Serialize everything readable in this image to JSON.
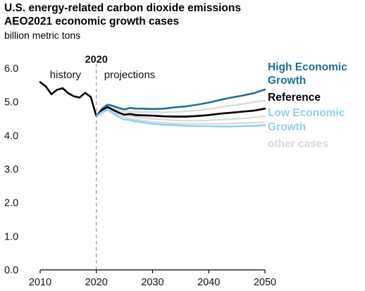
{
  "header": {
    "title_line1": "U.S. energy-related carbon dioxide emissions",
    "title_line2": "AEO2021 economic growth cases",
    "units": "billion metric tons"
  },
  "annotations": {
    "divider_year": "2020",
    "history": "history",
    "projections": "projections"
  },
  "legend": {
    "high_line1": "High Economic",
    "high_line2": "Growth",
    "reference": "Reference",
    "low_line1": "Low Economic",
    "low_line2": "Growth",
    "other": "other cases"
  },
  "colors": {
    "high": "#1f6f95",
    "reference": "#000000",
    "low": "#8fd0ee",
    "other": "#d9d9d9",
    "axis": "#000000"
  },
  "chart_data": {
    "type": "line",
    "title": "U.S. energy-related carbon dioxide emissions",
    "subtitle": "AEO2021 economic growth cases",
    "ylabel": "billion metric tons",
    "xlim": [
      2010,
      2050
    ],
    "ylim": [
      0,
      6
    ],
    "x_ticks": [
      2010,
      2020,
      2030,
      2040,
      2050
    ],
    "y_ticks": [
      0.0,
      1.0,
      2.0,
      3.0,
      4.0,
      5.0,
      6.0
    ],
    "grid": false,
    "vline_x": 2020,
    "series": [
      {
        "name": "other cases",
        "role": "other",
        "x": [
          2020,
          2022,
          2024,
          2026,
          2028,
          2030,
          2032,
          2034,
          2036,
          2038,
          2040,
          2042,
          2044,
          2046,
          2048,
          2050
        ],
        "values": [
          4.57,
          4.85,
          4.8,
          4.72,
          4.7,
          4.7,
          4.69,
          4.7,
          4.72,
          4.75,
          4.79,
          4.84,
          4.89,
          4.94,
          4.99,
          5.04
        ]
      },
      {
        "name": "other cases",
        "role": "other",
        "x": [
          2020,
          2022,
          2024,
          2026,
          2028,
          2030,
          2032,
          2034,
          2036,
          2038,
          2040,
          2042,
          2044,
          2046,
          2048,
          2050
        ],
        "values": [
          4.57,
          4.82,
          4.74,
          4.66,
          4.63,
          4.61,
          4.6,
          4.59,
          4.59,
          4.6,
          4.62,
          4.65,
          4.68,
          4.72,
          4.76,
          4.82
        ]
      },
      {
        "name": "other cases",
        "role": "other",
        "x": [
          2020,
          2022,
          2024,
          2026,
          2028,
          2030,
          2032,
          2034,
          2036,
          2038,
          2040,
          2042,
          2044,
          2046,
          2048,
          2050
        ],
        "values": [
          4.57,
          4.78,
          4.68,
          4.58,
          4.53,
          4.5,
          4.47,
          4.45,
          4.44,
          4.44,
          4.45,
          4.47,
          4.49,
          4.51,
          4.54,
          4.58
        ]
      },
      {
        "name": "other cases",
        "role": "other",
        "x": [
          2020,
          2022,
          2024,
          2026,
          2028,
          2030,
          2032,
          2034,
          2036,
          2038,
          2040,
          2042,
          2044,
          2046,
          2048,
          2050
        ],
        "values": [
          4.57,
          4.76,
          4.62,
          4.5,
          4.45,
          4.41,
          4.38,
          4.36,
          4.35,
          4.35,
          4.35,
          4.35,
          4.36,
          4.37,
          4.38,
          4.4
        ]
      },
      {
        "name": "history",
        "role": "history",
        "x": [
          2010,
          2011,
          2012,
          2013,
          2014,
          2015,
          2016,
          2017,
          2018,
          2019,
          2020
        ],
        "values": [
          5.59,
          5.46,
          5.23,
          5.36,
          5.41,
          5.26,
          5.17,
          5.13,
          5.27,
          5.15,
          4.57
        ]
      },
      {
        "name": "High Economic Growth",
        "role": "high",
        "x": [
          2020,
          2021,
          2022,
          2023,
          2024,
          2025,
          2026,
          2027,
          2028,
          2030,
          2032,
          2034,
          2036,
          2038,
          2040,
          2042,
          2044,
          2046,
          2048,
          2050
        ],
        "values": [
          4.57,
          4.8,
          4.92,
          4.88,
          4.82,
          4.78,
          4.82,
          4.8,
          4.8,
          4.79,
          4.8,
          4.84,
          4.87,
          4.92,
          4.98,
          5.06,
          5.13,
          5.19,
          5.26,
          5.37
        ]
      },
      {
        "name": "Reference",
        "role": "reference",
        "x": [
          2020,
          2021,
          2022,
          2023,
          2024,
          2025,
          2026,
          2027,
          2028,
          2030,
          2032,
          2034,
          2036,
          2038,
          2040,
          2042,
          2044,
          2046,
          2048,
          2050
        ],
        "values": [
          4.57,
          4.76,
          4.85,
          4.76,
          4.68,
          4.62,
          4.64,
          4.61,
          4.6,
          4.59,
          4.57,
          4.56,
          4.56,
          4.58,
          4.61,
          4.65,
          4.68,
          4.71,
          4.74,
          4.8
        ]
      },
      {
        "name": "Low Economic Growth",
        "role": "low",
        "x": [
          2020,
          2021,
          2022,
          2023,
          2024,
          2025,
          2026,
          2027,
          2028,
          2030,
          2032,
          2034,
          2036,
          2038,
          2040,
          2042,
          2044,
          2046,
          2048,
          2050
        ],
        "values": [
          4.57,
          4.7,
          4.77,
          4.66,
          4.55,
          4.48,
          4.46,
          4.42,
          4.4,
          4.35,
          4.32,
          4.31,
          4.29,
          4.28,
          4.28,
          4.27,
          4.27,
          4.28,
          4.29,
          4.31
        ]
      }
    ]
  }
}
